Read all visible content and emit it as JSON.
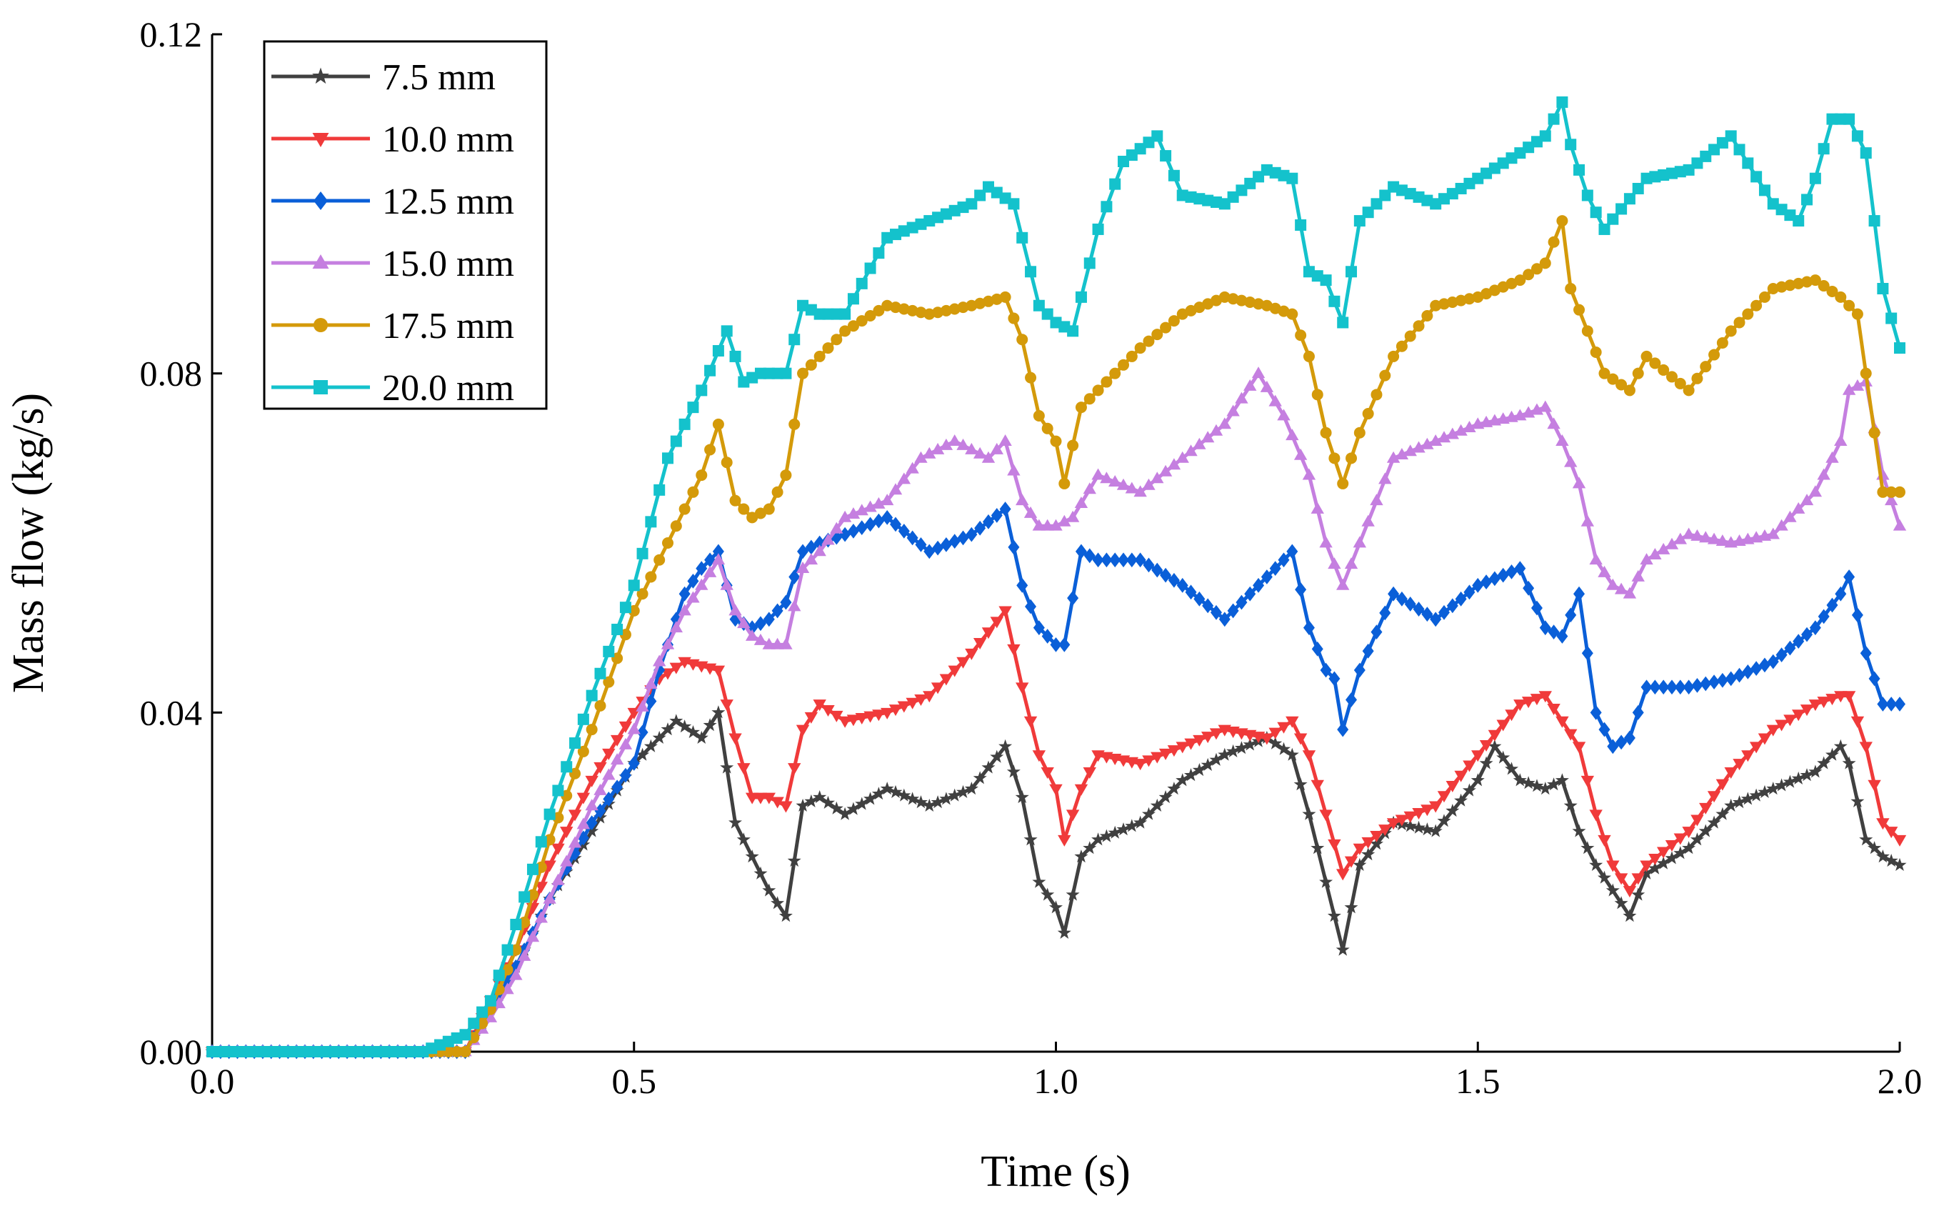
{
  "chart_data": {
    "type": "line",
    "title": "",
    "xlabel": "Time (s)",
    "ylabel": "Mass flow (kg/s)",
    "xlim": [
      0,
      2.0
    ],
    "ylim": [
      0,
      0.12
    ],
    "xticks": [
      0.0,
      0.5,
      1.0,
      1.5,
      2.0
    ],
    "xtick_labels": [
      "0.0",
      "0.5",
      "1.0",
      "1.5",
      "2.0"
    ],
    "yticks": [
      0.0,
      0.04,
      0.08,
      0.12
    ],
    "ytick_labels": [
      "0.00",
      "0.04",
      "0.08",
      "0.12"
    ],
    "grid": false,
    "legend_position": "top-left",
    "series": [
      {
        "name": "7.5 mm",
        "color": "#404040",
        "marker": "star",
        "x": [
          0,
          0.1,
          0.2,
          0.25,
          0.3,
          0.33,
          0.36,
          0.4,
          0.45,
          0.5,
          0.55,
          0.58,
          0.6,
          0.62,
          0.64,
          0.66,
          0.68,
          0.7,
          0.72,
          0.75,
          0.8,
          0.85,
          0.9,
          0.94,
          0.96,
          0.98,
          1.0,
          1.01,
          1.03,
          1.05,
          1.1,
          1.15,
          1.2,
          1.25,
          1.28,
          1.3,
          1.32,
          1.34,
          1.36,
          1.4,
          1.45,
          1.5,
          1.52,
          1.55,
          1.58,
          1.6,
          1.62,
          1.64,
          1.66,
          1.68,
          1.7,
          1.75,
          1.8,
          1.85,
          1.9,
          1.93,
          1.94,
          1.96,
          1.98,
          2.0
        ],
        "y": [
          0,
          0,
          0,
          0,
          0,
          0.005,
          0.01,
          0.018,
          0.026,
          0.034,
          0.039,
          0.037,
          0.04,
          0.027,
          0.023,
          0.019,
          0.016,
          0.029,
          0.03,
          0.028,
          0.031,
          0.029,
          0.031,
          0.036,
          0.03,
          0.02,
          0.017,
          0.014,
          0.023,
          0.025,
          0.027,
          0.032,
          0.035,
          0.037,
          0.035,
          0.028,
          0.02,
          0.012,
          0.022,
          0.027,
          0.026,
          0.032,
          0.036,
          0.032,
          0.031,
          0.032,
          0.026,
          0.022,
          0.019,
          0.016,
          0.021,
          0.024,
          0.029,
          0.031,
          0.033,
          0.036,
          0.034,
          0.025,
          0.023,
          0.022
        ]
      },
      {
        "name": "10.0 mm",
        "color": "#f03a3a",
        "marker": "triangle-down",
        "x": [
          0,
          0.1,
          0.2,
          0.25,
          0.3,
          0.33,
          0.36,
          0.4,
          0.45,
          0.5,
          0.53,
          0.56,
          0.6,
          0.62,
          0.64,
          0.66,
          0.68,
          0.7,
          0.72,
          0.75,
          0.8,
          0.85,
          0.9,
          0.94,
          0.96,
          0.98,
          1.0,
          1.01,
          1.03,
          1.05,
          1.1,
          1.15,
          1.2,
          1.25,
          1.28,
          1.3,
          1.32,
          1.34,
          1.36,
          1.4,
          1.45,
          1.5,
          1.55,
          1.58,
          1.6,
          1.62,
          1.64,
          1.66,
          1.68,
          1.7,
          1.75,
          1.8,
          1.85,
          1.9,
          1.93,
          1.94,
          1.96,
          1.98,
          2.0
        ],
        "y": [
          0,
          0,
          0,
          0,
          0,
          0.006,
          0.012,
          0.022,
          0.032,
          0.04,
          0.044,
          0.046,
          0.045,
          0.037,
          0.03,
          0.03,
          0.029,
          0.038,
          0.041,
          0.039,
          0.04,
          0.042,
          0.047,
          0.052,
          0.043,
          0.035,
          0.031,
          0.025,
          0.031,
          0.035,
          0.034,
          0.036,
          0.038,
          0.037,
          0.039,
          0.035,
          0.028,
          0.021,
          0.024,
          0.027,
          0.029,
          0.035,
          0.041,
          0.042,
          0.039,
          0.036,
          0.028,
          0.022,
          0.019,
          0.022,
          0.026,
          0.033,
          0.038,
          0.041,
          0.042,
          0.042,
          0.036,
          0.027,
          0.025
        ]
      },
      {
        "name": "12.5 mm",
        "color": "#0a5fd8",
        "marker": "diamond",
        "x": [
          0,
          0.1,
          0.2,
          0.25,
          0.3,
          0.33,
          0.36,
          0.4,
          0.45,
          0.5,
          0.53,
          0.56,
          0.58,
          0.6,
          0.62,
          0.64,
          0.66,
          0.68,
          0.7,
          0.72,
          0.75,
          0.8,
          0.85,
          0.9,
          0.94,
          0.96,
          0.98,
          1.0,
          1.01,
          1.03,
          1.05,
          1.1,
          1.15,
          1.2,
          1.25,
          1.28,
          1.3,
          1.32,
          1.33,
          1.34,
          1.36,
          1.4,
          1.45,
          1.5,
          1.55,
          1.58,
          1.6,
          1.62,
          1.64,
          1.66,
          1.68,
          1.7,
          1.75,
          1.8,
          1.85,
          1.9,
          1.93,
          1.94,
          1.96,
          1.98,
          2.0
        ],
        "y": [
          0,
          0,
          0,
          0,
          0,
          0.005,
          0.01,
          0.018,
          0.027,
          0.034,
          0.045,
          0.054,
          0.057,
          0.059,
          0.051,
          0.05,
          0.051,
          0.053,
          0.059,
          0.06,
          0.061,
          0.063,
          0.059,
          0.061,
          0.064,
          0.055,
          0.05,
          0.048,
          0.048,
          0.059,
          0.058,
          0.058,
          0.055,
          0.051,
          0.056,
          0.059,
          0.05,
          0.045,
          0.044,
          0.038,
          0.045,
          0.054,
          0.051,
          0.055,
          0.057,
          0.05,
          0.049,
          0.054,
          0.04,
          0.036,
          0.037,
          0.043,
          0.043,
          0.044,
          0.046,
          0.05,
          0.054,
          0.056,
          0.047,
          0.041,
          0.041
        ]
      },
      {
        "name": "15.0 mm",
        "color": "#c57fe0",
        "marker": "triangle-up",
        "x": [
          0,
          0.1,
          0.2,
          0.25,
          0.3,
          0.33,
          0.36,
          0.4,
          0.45,
          0.5,
          0.53,
          0.56,
          0.58,
          0.6,
          0.62,
          0.64,
          0.66,
          0.68,
          0.7,
          0.72,
          0.75,
          0.8,
          0.84,
          0.88,
          0.92,
          0.94,
          0.96,
          0.98,
          1.0,
          1.02,
          1.05,
          1.1,
          1.15,
          1.2,
          1.24,
          1.27,
          1.3,
          1.32,
          1.34,
          1.36,
          1.4,
          1.45,
          1.5,
          1.55,
          1.58,
          1.6,
          1.62,
          1.64,
          1.66,
          1.68,
          1.7,
          1.75,
          1.8,
          1.85,
          1.9,
          1.93,
          1.94,
          1.96,
          1.98,
          2.0
        ],
        "y": [
          0,
          0,
          0,
          0,
          0,
          0.004,
          0.009,
          0.018,
          0.029,
          0.038,
          0.046,
          0.052,
          0.055,
          0.058,
          0.052,
          0.049,
          0.048,
          0.048,
          0.057,
          0.059,
          0.063,
          0.065,
          0.07,
          0.072,
          0.07,
          0.072,
          0.065,
          0.062,
          0.062,
          0.063,
          0.068,
          0.066,
          0.07,
          0.074,
          0.08,
          0.075,
          0.068,
          0.06,
          0.055,
          0.06,
          0.07,
          0.072,
          0.074,
          0.075,
          0.076,
          0.072,
          0.067,
          0.058,
          0.055,
          0.054,
          0.058,
          0.061,
          0.06,
          0.061,
          0.066,
          0.072,
          0.078,
          0.079,
          0.068,
          0.062
        ]
      },
      {
        "name": "17.5 mm",
        "color": "#d49a0a",
        "marker": "circle",
        "x": [
          0,
          0.1,
          0.2,
          0.25,
          0.3,
          0.33,
          0.36,
          0.4,
          0.45,
          0.5,
          0.54,
          0.58,
          0.6,
          0.62,
          0.64,
          0.66,
          0.68,
          0.7,
          0.72,
          0.75,
          0.8,
          0.85,
          0.9,
          0.94,
          0.96,
          0.98,
          1.0,
          1.01,
          1.03,
          1.05,
          1.1,
          1.15,
          1.2,
          1.25,
          1.28,
          1.3,
          1.32,
          1.34,
          1.36,
          1.4,
          1.45,
          1.5,
          1.55,
          1.58,
          1.6,
          1.61,
          1.63,
          1.65,
          1.68,
          1.7,
          1.75,
          1.8,
          1.85,
          1.9,
          1.93,
          1.95,
          1.98,
          2.0
        ],
        "y": [
          0,
          0,
          0,
          0,
          0,
          0.005,
          0.012,
          0.025,
          0.038,
          0.052,
          0.06,
          0.068,
          0.074,
          0.065,
          0.063,
          0.064,
          0.068,
          0.08,
          0.082,
          0.085,
          0.088,
          0.087,
          0.088,
          0.089,
          0.084,
          0.075,
          0.072,
          0.067,
          0.076,
          0.078,
          0.083,
          0.087,
          0.089,
          0.088,
          0.087,
          0.082,
          0.073,
          0.067,
          0.073,
          0.082,
          0.088,
          0.089,
          0.091,
          0.093,
          0.098,
          0.09,
          0.085,
          0.08,
          0.078,
          0.082,
          0.078,
          0.085,
          0.09,
          0.091,
          0.089,
          0.087,
          0.066,
          0.066
        ]
      },
      {
        "name": "20.0 mm",
        "color": "#14c2cc",
        "marker": "square",
        "x": [
          0,
          0.1,
          0.2,
          0.25,
          0.3,
          0.33,
          0.36,
          0.4,
          0.45,
          0.5,
          0.54,
          0.58,
          0.61,
          0.63,
          0.65,
          0.68,
          0.7,
          0.72,
          0.75,
          0.8,
          0.85,
          0.9,
          0.92,
          0.95,
          0.98,
          1.0,
          1.02,
          1.05,
          1.08,
          1.12,
          1.15,
          1.2,
          1.25,
          1.28,
          1.3,
          1.32,
          1.34,
          1.36,
          1.4,
          1.45,
          1.5,
          1.55,
          1.58,
          1.6,
          1.61,
          1.63,
          1.65,
          1.7,
          1.75,
          1.8,
          1.85,
          1.88,
          1.9,
          1.92,
          1.94,
          1.96,
          1.98,
          2.0
        ],
        "y": [
          0,
          0,
          0,
          0,
          0.002,
          0.006,
          0.015,
          0.028,
          0.042,
          0.055,
          0.07,
          0.078,
          0.085,
          0.079,
          0.08,
          0.08,
          0.088,
          0.087,
          0.087,
          0.096,
          0.098,
          0.1,
          0.102,
          0.1,
          0.088,
          0.086,
          0.085,
          0.097,
          0.105,
          0.108,
          0.101,
          0.1,
          0.104,
          0.103,
          0.092,
          0.091,
          0.086,
          0.098,
          0.102,
          0.1,
          0.103,
          0.106,
          0.108,
          0.112,
          0.107,
          0.101,
          0.097,
          0.103,
          0.104,
          0.108,
          0.1,
          0.098,
          0.103,
          0.11,
          0.11,
          0.106,
          0.09,
          0.083
        ]
      }
    ]
  }
}
